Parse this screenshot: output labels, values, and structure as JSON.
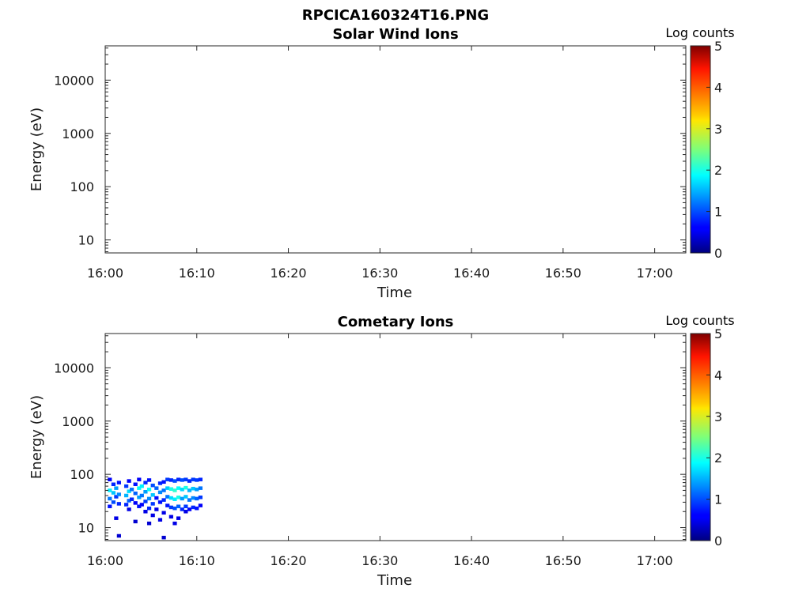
{
  "figure": {
    "title": "RPCICA160324T16.PNG"
  },
  "chart_data": [
    {
      "type": "heatmap",
      "title": "Solar Wind Ions",
      "xlabel": "Time",
      "ylabel": "Energy (eV)",
      "x_tick_labels": [
        "16:00",
        "16:10",
        "16:20",
        "16:30",
        "16:40",
        "16:50",
        "17:00"
      ],
      "x_range_minutes": [
        0,
        63.4
      ],
      "y_scale": "log",
      "y_range_eV": [
        5.7,
        44000
      ],
      "y_ticks": [
        10,
        100,
        1000,
        10000
      ],
      "y_tick_labels": [
        "10",
        "100",
        "1000",
        "10000"
      ],
      "colorbar": {
        "title": "Log counts",
        "range": [
          0,
          5
        ],
        "ticks": [
          "0",
          "1",
          "2",
          "3",
          "4",
          "5"
        ],
        "colormap": "jet"
      },
      "cells": []
    },
    {
      "type": "heatmap",
      "title": "Cometary Ions",
      "xlabel": "Time",
      "ylabel": "Energy (eV)",
      "x_tick_labels": [
        "16:00",
        "16:10",
        "16:20",
        "16:30",
        "16:40",
        "16:50",
        "17:00"
      ],
      "x_range_minutes": [
        0,
        63.4
      ],
      "y_scale": "log",
      "y_range_eV": [
        5.7,
        44000
      ],
      "y_ticks": [
        10,
        100,
        1000,
        10000
      ],
      "y_tick_labels": [
        "10",
        "100",
        "1000",
        "10000"
      ],
      "colorbar": {
        "title": "Log counts",
        "range": [
          0,
          5
        ],
        "ticks": [
          "0",
          "1",
          "2",
          "3",
          "4",
          "5"
        ],
        "colormap": "jet"
      },
      "cells": [
        {
          "t": 0.5,
          "e": 80,
          "v": 0.6
        },
        {
          "t": 0.5,
          "e": 50,
          "v": 1.8
        },
        {
          "t": 0.5,
          "e": 35,
          "v": 1.2
        },
        {
          "t": 0.5,
          "e": 25,
          "v": 0.7
        },
        {
          "t": 0.9,
          "e": 65,
          "v": 0.8
        },
        {
          "t": 0.9,
          "e": 45,
          "v": 1.6
        },
        {
          "t": 0.9,
          "e": 30,
          "v": 1.0
        },
        {
          "t": 1.2,
          "e": 55,
          "v": 1.4
        },
        {
          "t": 1.2,
          "e": 38,
          "v": 0.9
        },
        {
          "t": 1.2,
          "e": 15,
          "v": 0.5
        },
        {
          "t": 1.5,
          "e": 70,
          "v": 0.7
        },
        {
          "t": 1.5,
          "e": 42,
          "v": 1.3
        },
        {
          "t": 1.5,
          "e": 28,
          "v": 0.8
        },
        {
          "t": 1.5,
          "e": 7,
          "v": 0.4
        },
        {
          "t": 2.3,
          "e": 60,
          "v": 0.9
        },
        {
          "t": 2.3,
          "e": 40,
          "v": 1.5
        },
        {
          "t": 2.3,
          "e": 27,
          "v": 0.8
        },
        {
          "t": 2.6,
          "e": 75,
          "v": 0.6
        },
        {
          "t": 2.6,
          "e": 48,
          "v": 1.7
        },
        {
          "t": 2.6,
          "e": 32,
          "v": 1.1
        },
        {
          "t": 2.6,
          "e": 22,
          "v": 0.5
        },
        {
          "t": 2.9,
          "e": 52,
          "v": 1.2
        },
        {
          "t": 2.9,
          "e": 34,
          "v": 0.8
        },
        {
          "t": 3.3,
          "e": 65,
          "v": 0.7
        },
        {
          "t": 3.3,
          "e": 44,
          "v": 1.1
        },
        {
          "t": 3.3,
          "e": 29,
          "v": 0.6
        },
        {
          "t": 3.3,
          "e": 13,
          "v": 0.4
        },
        {
          "t": 3.7,
          "e": 80,
          "v": 0.6
        },
        {
          "t": 3.7,
          "e": 55,
          "v": 1.9
        },
        {
          "t": 3.7,
          "e": 37,
          "v": 1.4
        },
        {
          "t": 3.7,
          "e": 25,
          "v": 0.7
        },
        {
          "t": 4.0,
          "e": 60,
          "v": 1.8
        },
        {
          "t": 4.0,
          "e": 40,
          "v": 1.2
        },
        {
          "t": 4.0,
          "e": 27,
          "v": 0.6
        },
        {
          "t": 4.4,
          "e": 70,
          "v": 0.8
        },
        {
          "t": 4.4,
          "e": 47,
          "v": 1.4
        },
        {
          "t": 4.4,
          "e": 31,
          "v": 0.9
        },
        {
          "t": 4.4,
          "e": 20,
          "v": 0.5
        },
        {
          "t": 4.8,
          "e": 78,
          "v": 0.7
        },
        {
          "t": 4.8,
          "e": 52,
          "v": 1.9
        },
        {
          "t": 4.8,
          "e": 35,
          "v": 1.3
        },
        {
          "t": 4.8,
          "e": 23,
          "v": 0.8
        },
        {
          "t": 4.8,
          "e": 12,
          "v": 0.4
        },
        {
          "t": 5.2,
          "e": 62,
          "v": 1.0
        },
        {
          "t": 5.2,
          "e": 41,
          "v": 1.6
        },
        {
          "t": 5.2,
          "e": 28,
          "v": 0.9
        },
        {
          "t": 5.2,
          "e": 17,
          "v": 0.5
        },
        {
          "t": 5.6,
          "e": 55,
          "v": 1.1
        },
        {
          "t": 5.6,
          "e": 36,
          "v": 0.7
        },
        {
          "t": 5.6,
          "e": 22,
          "v": 0.5
        },
        {
          "t": 6.0,
          "e": 68,
          "v": 0.8
        },
        {
          "t": 6.0,
          "e": 46,
          "v": 1.3
        },
        {
          "t": 6.0,
          "e": 30,
          "v": 0.7
        },
        {
          "t": 6.0,
          "e": 14,
          "v": 0.5
        },
        {
          "t": 6.4,
          "e": 72,
          "v": 0.7
        },
        {
          "t": 6.4,
          "e": 50,
          "v": 1.2
        },
        {
          "t": 6.4,
          "e": 33,
          "v": 0.8
        },
        {
          "t": 6.4,
          "e": 19,
          "v": 0.5
        },
        {
          "t": 6.4,
          "e": 6.5,
          "v": 0.4
        },
        {
          "t": 6.8,
          "e": 80,
          "v": 0.9
        },
        {
          "t": 6.8,
          "e": 55,
          "v": 1.6
        },
        {
          "t": 6.8,
          "e": 38,
          "v": 1.2
        },
        {
          "t": 6.8,
          "e": 26,
          "v": 0.7
        },
        {
          "t": 7.2,
          "e": 78,
          "v": 0.8
        },
        {
          "t": 7.2,
          "e": 53,
          "v": 2.0
        },
        {
          "t": 7.2,
          "e": 36,
          "v": 1.7
        },
        {
          "t": 7.2,
          "e": 24,
          "v": 0.9
        },
        {
          "t": 7.2,
          "e": 16,
          "v": 0.5
        },
        {
          "t": 7.6,
          "e": 75,
          "v": 1.0
        },
        {
          "t": 7.6,
          "e": 50,
          "v": 2.1
        },
        {
          "t": 7.6,
          "e": 34,
          "v": 1.8
        },
        {
          "t": 7.6,
          "e": 23,
          "v": 1.0
        },
        {
          "t": 7.6,
          "e": 12,
          "v": 0.5
        },
        {
          "t": 8.0,
          "e": 80,
          "v": 0.8
        },
        {
          "t": 8.0,
          "e": 55,
          "v": 1.9
        },
        {
          "t": 8.0,
          "e": 37,
          "v": 2.0
        },
        {
          "t": 8.0,
          "e": 25,
          "v": 1.1
        },
        {
          "t": 8.0,
          "e": 15,
          "v": 0.5
        },
        {
          "t": 8.4,
          "e": 78,
          "v": 1.0
        },
        {
          "t": 8.4,
          "e": 52,
          "v": 1.7
        },
        {
          "t": 8.4,
          "e": 35,
          "v": 1.4
        },
        {
          "t": 8.4,
          "e": 22,
          "v": 0.8
        },
        {
          "t": 8.8,
          "e": 80,
          "v": 0.9
        },
        {
          "t": 8.8,
          "e": 56,
          "v": 2.0
        },
        {
          "t": 8.8,
          "e": 38,
          "v": 1.6
        },
        {
          "t": 8.8,
          "e": 25,
          "v": 0.9
        },
        {
          "t": 8.8,
          "e": 20,
          "v": 0.5
        },
        {
          "t": 9.2,
          "e": 75,
          "v": 0.8
        },
        {
          "t": 9.2,
          "e": 50,
          "v": 1.5
        },
        {
          "t": 9.2,
          "e": 33,
          "v": 1.2
        },
        {
          "t": 9.2,
          "e": 22,
          "v": 0.6
        },
        {
          "t": 9.6,
          "e": 80,
          "v": 0.9
        },
        {
          "t": 9.6,
          "e": 54,
          "v": 1.6
        },
        {
          "t": 9.6,
          "e": 36,
          "v": 1.3
        },
        {
          "t": 9.6,
          "e": 24,
          "v": 0.8
        },
        {
          "t": 10.0,
          "e": 78,
          "v": 0.9
        },
        {
          "t": 10.0,
          "e": 52,
          "v": 1.4
        },
        {
          "t": 10.0,
          "e": 35,
          "v": 1.1
        },
        {
          "t": 10.0,
          "e": 23,
          "v": 0.7
        },
        {
          "t": 10.4,
          "e": 80,
          "v": 0.8
        },
        {
          "t": 10.4,
          "e": 55,
          "v": 1.2
        },
        {
          "t": 10.4,
          "e": 37,
          "v": 0.9
        },
        {
          "t": 10.4,
          "e": 26,
          "v": 0.6
        }
      ]
    }
  ]
}
